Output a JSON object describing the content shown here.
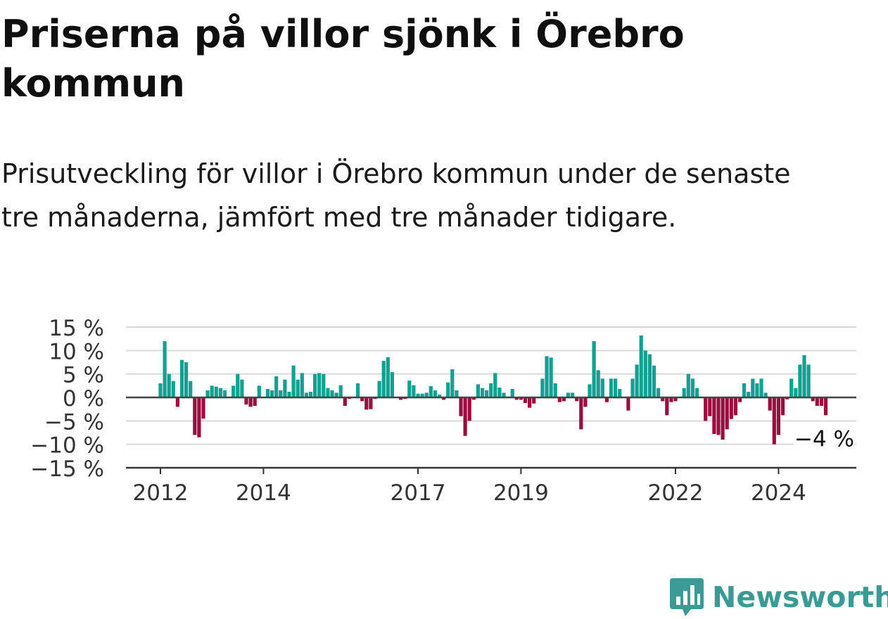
{
  "title": "Priserna på villor sjönk i Örebro kommun",
  "subtitle": "Prisutveckling för villor i Örebro kommun under de senaste tre månaderna, jämfört med tre månader tidigare.",
  "brand": {
    "name": "Newsworthy",
    "color": "#3a9b94"
  },
  "colors": {
    "positive": "#12a093",
    "negative": "#9b0d3f",
    "grid": "#d9d9d9",
    "zero": "#444444"
  },
  "chart_data": {
    "type": "bar",
    "x_start": "2012-01",
    "x_end": "2024-12",
    "x_ticks": [
      "2012",
      "2014",
      "2017",
      "2019",
      "2022",
      "2024"
    ],
    "y_ticks": [
      "15 %",
      "10 %",
      "5 %",
      "0 %",
      "−5 %",
      "−10 %",
      "−15 %"
    ],
    "y_tick_values": [
      15,
      10,
      5,
      0,
      -5,
      -10,
      -15
    ],
    "ylim": [
      -15,
      15
    ],
    "grid": true,
    "unit": "%",
    "last_label": "−4 %",
    "values": [
      3,
      12,
      5,
      3.5,
      -2,
      8,
      7.5,
      3.5,
      -8,
      -8.5,
      -4.5,
      1.5,
      2.5,
      2.3,
      2,
      1.5,
      0,
      2.5,
      5,
      3.8,
      -1.5,
      -2,
      -1.8,
      2.5,
      0,
      1.8,
      1.5,
      4.5,
      1.5,
      3.8,
      1.2,
      6.8,
      3.8,
      5.2,
      1,
      1.2,
      5,
      5.2,
      5,
      2,
      1.5,
      1,
      2.6,
      -1.8,
      -0.3,
      0,
      3,
      -0.8,
      -2.6,
      -2.5,
      -0.3,
      3.5,
      7.8,
      8.6,
      5.4,
      0,
      -0.5,
      -0.3,
      3.6,
      2.6,
      0.8,
      0.8,
      1,
      2.4,
      1.5,
      0.6,
      -0.5,
      3.2,
      6,
      1.5,
      -4,
      -8.2,
      -5,
      -0.5,
      2.8,
      2,
      1.5,
      3,
      5.2,
      2.1,
      1,
      0.2,
      1.8,
      -0.5,
      -0.5,
      -1.2,
      -2.2,
      -1.3,
      0,
      4,
      8.8,
      8.5,
      3,
      -1,
      -0.8,
      1,
      1,
      -0.8,
      -6.8,
      -2,
      2.8,
      12,
      5.8,
      4,
      -1,
      4,
      4,
      1.8,
      0,
      -2.8,
      4,
      7,
      13.2,
      10,
      9.2,
      6.8,
      2,
      -0.8,
      -3.8,
      -1,
      -0.8,
      0,
      2,
      5,
      4,
      2,
      0,
      -5,
      -4,
      -7.8,
      -8,
      -9,
      -6.8,
      -4.6,
      -3.8,
      -1,
      3,
      1.2,
      4,
      3,
      4,
      1,
      -2.8,
      -10,
      -8,
      -3.8,
      -0.4,
      4,
      2,
      7,
      9,
      7,
      -0.8,
      -1.8,
      -1.8,
      -3.8
    ]
  }
}
